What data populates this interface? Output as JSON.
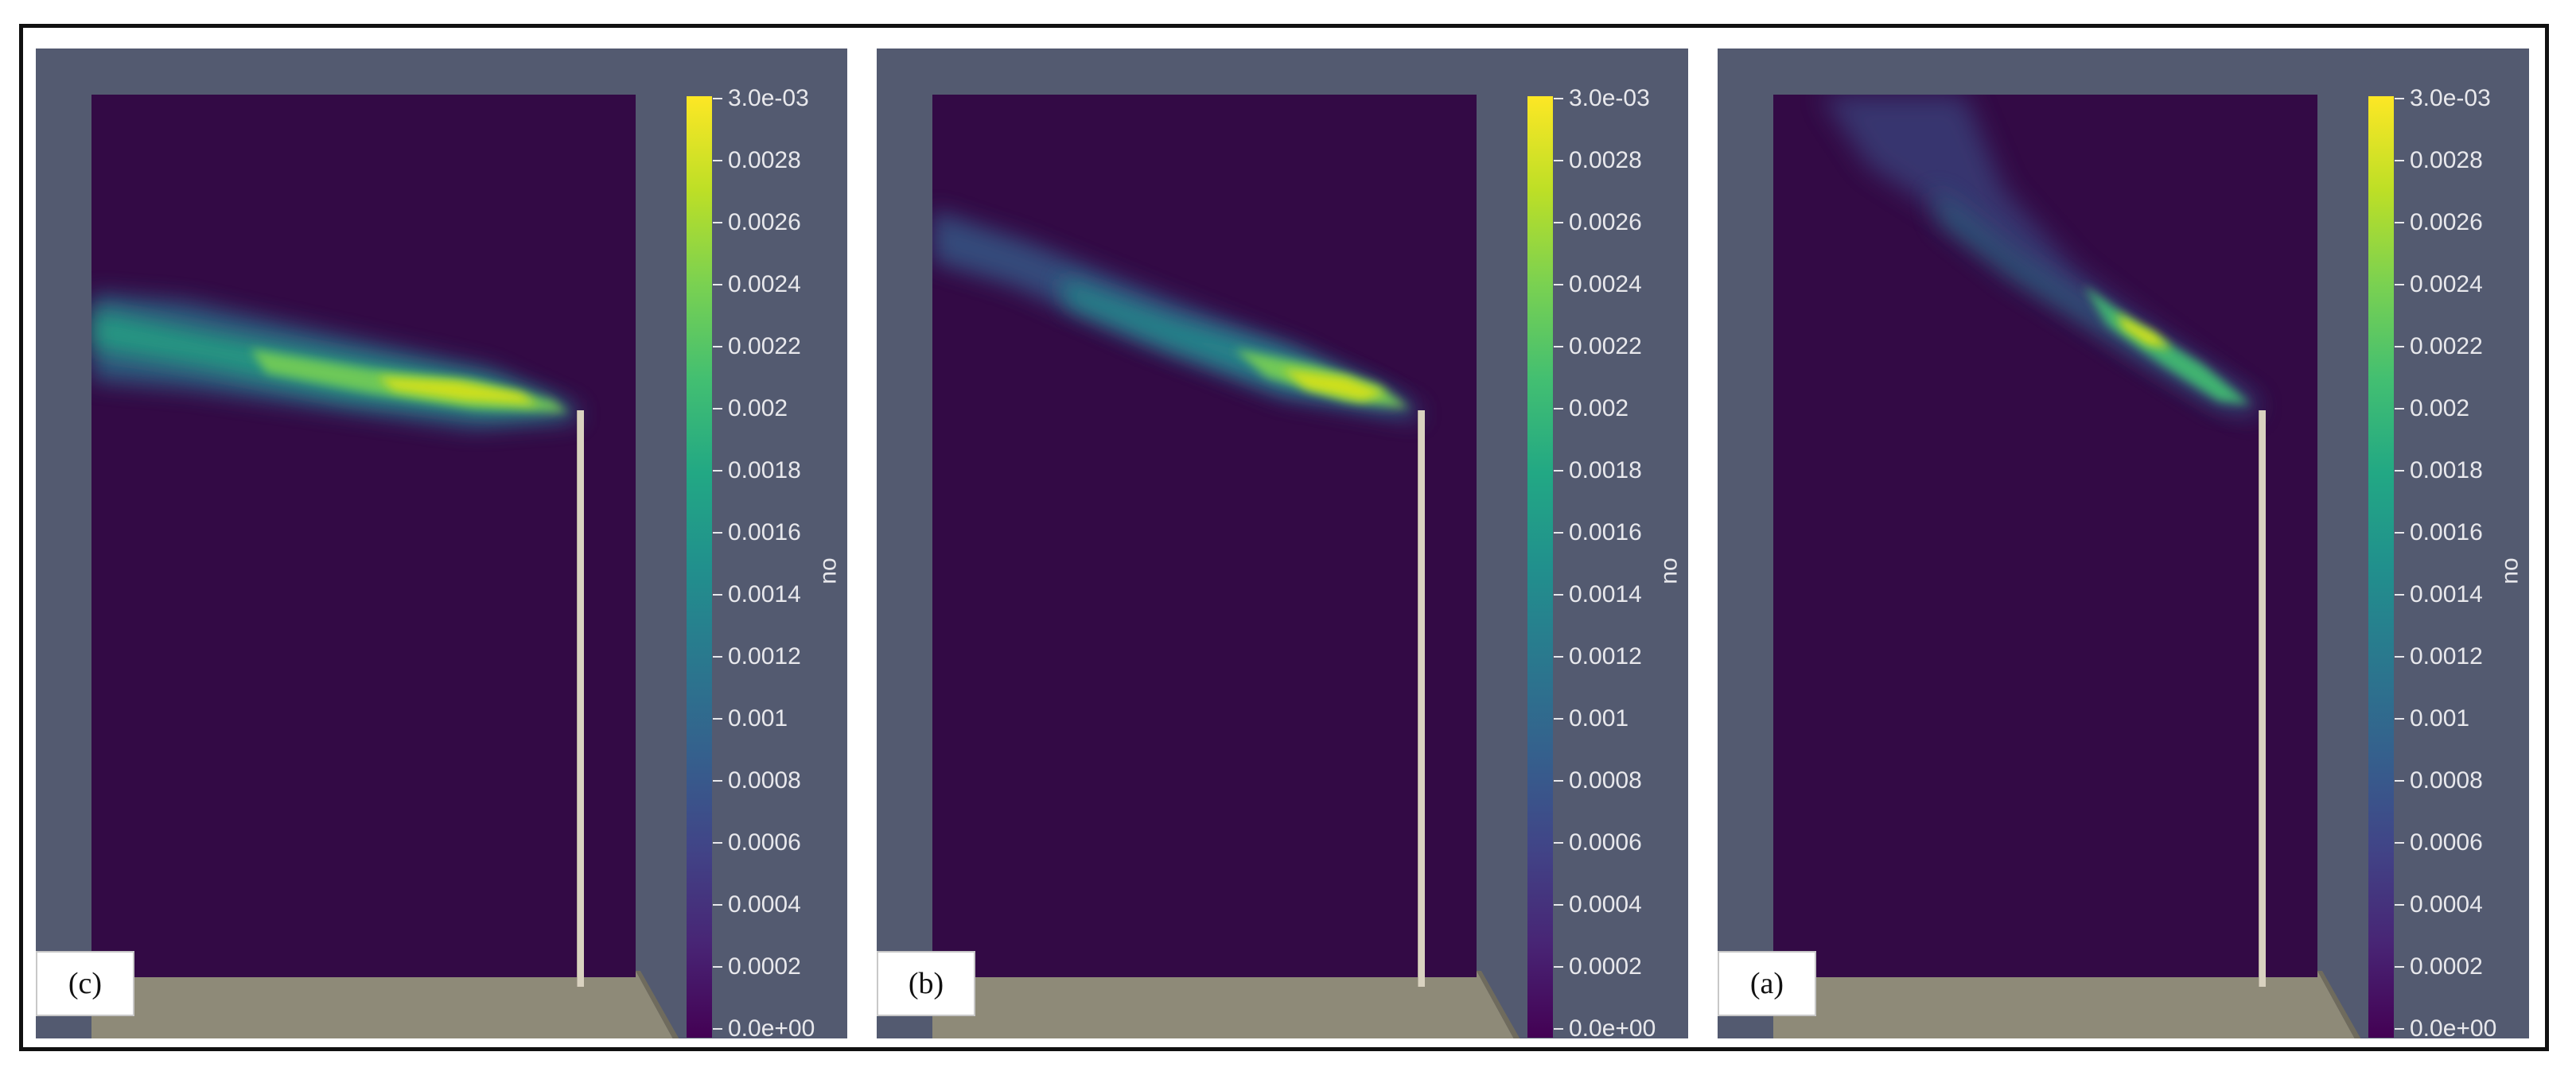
{
  "figure": {
    "panels": [
      {
        "label": "(c)",
        "plume": "shallow"
      },
      {
        "label": "(b)",
        "plume": "medium"
      },
      {
        "label": "(a)",
        "plume": "steep"
      }
    ],
    "colorbar": {
      "title": "no",
      "colormap": "viridis",
      "ticks": [
        "3.0e-03",
        "0.0028",
        "0.0026",
        "0.0024",
        "0.0022",
        "0.002",
        "0.0018",
        "0.0016",
        "0.0014",
        "0.0012",
        "0.001",
        "0.0008",
        "0.0006",
        "0.0004",
        "0.0002",
        "0.0e+00"
      ]
    },
    "colors": {
      "background": "#535a70",
      "domain": "#330a45",
      "ground": "#8e8a78",
      "stack": "#d9d2c0"
    }
  }
}
